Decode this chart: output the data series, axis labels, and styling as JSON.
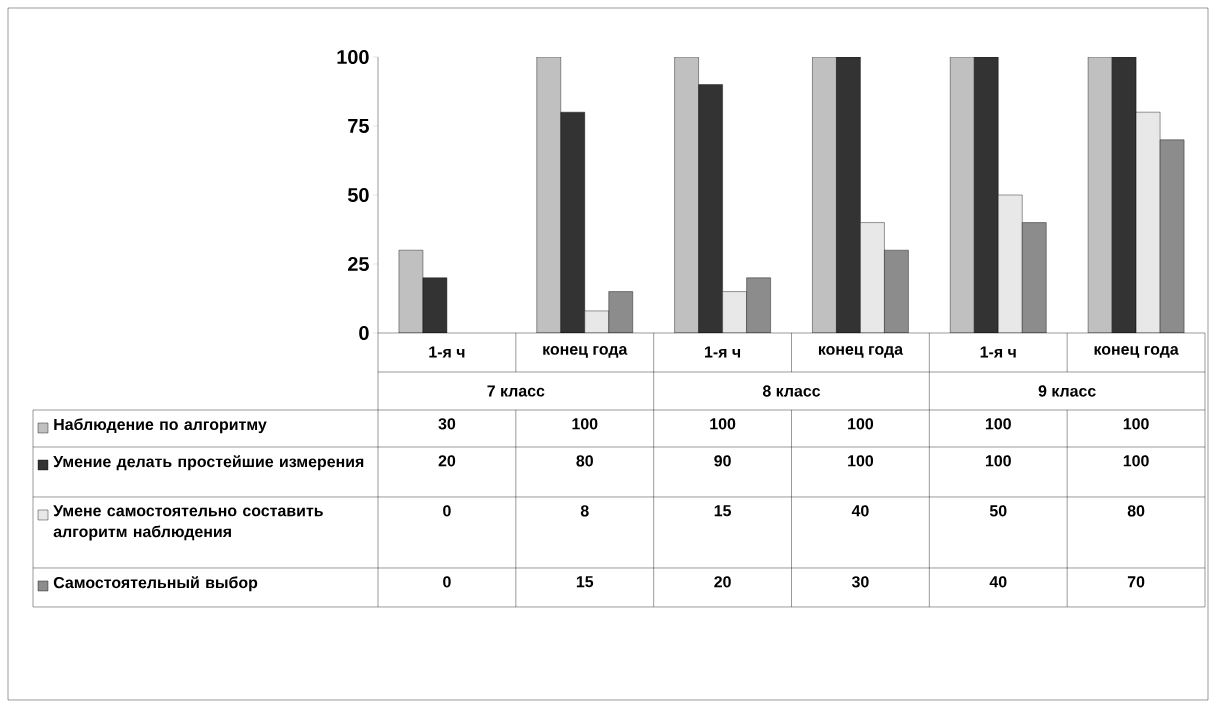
{
  "chart_data": {
    "type": "bar",
    "categories": [
      "1-я ч",
      "конец года",
      "1-я ч",
      "конец года",
      "1-я ч",
      "конец года"
    ],
    "annotations": [
      "7 класс",
      "8 класс",
      "9 класс"
    ],
    "series": [
      {
        "name": "Наблюдение по алгоритму",
        "color": "#c0c0c0",
        "values": [
          30,
          100,
          100,
          100,
          100,
          100
        ]
      },
      {
        "name": "Умение делать простейшие измерения",
        "color": "#333333",
        "values": [
          20,
          80,
          90,
          100,
          100,
          100
        ]
      },
      {
        "name": "Умене самостоятельно составить алгоритм наблюдения",
        "color": "#e8e8e8",
        "values": [
          0,
          8,
          15,
          40,
          50,
          80
        ]
      },
      {
        "name": "Самостоятельный выбор",
        "color": "#8c8c8c",
        "values": [
          0,
          15,
          20,
          30,
          40,
          70
        ]
      }
    ],
    "ylim": [
      0,
      100
    ],
    "yticks": [
      0,
      25,
      50,
      75,
      100
    ],
    "data_labels": true,
    "legend": "bottom"
  }
}
